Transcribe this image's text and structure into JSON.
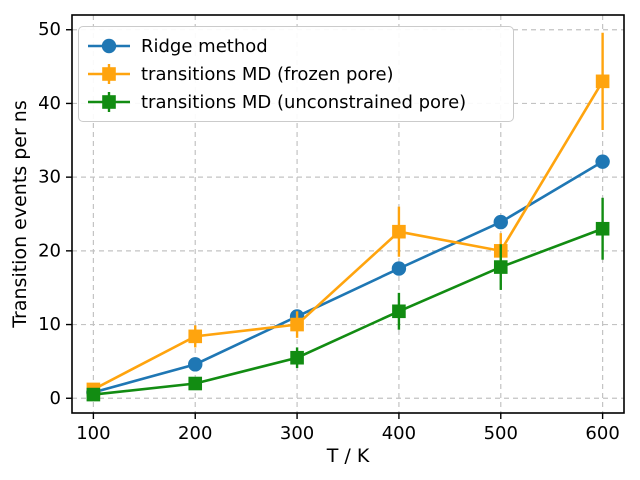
{
  "chart_data": {
    "type": "line",
    "title": "",
    "xlabel": "T / K",
    "ylabel": "Transition events per ns",
    "x": [
      100,
      200,
      300,
      400,
      500,
      600
    ],
    "xticks": [
      100,
      200,
      300,
      400,
      500,
      600
    ],
    "yticks": [
      0,
      10,
      20,
      30,
      40,
      50
    ],
    "xlim": [
      79,
      621
    ],
    "ylim": [
      -2,
      52
    ],
    "grid": true,
    "grid_style": "dashed",
    "legend_position": "upper-left",
    "series": [
      {
        "name": "Ridge method",
        "color": "#1f77b4",
        "marker": "circle",
        "has_error_bars": false,
        "values": [
          0.8,
          4.6,
          11.1,
          17.6,
          23.9,
          32.1
        ]
      },
      {
        "name": "transitions MD (frozen pore)",
        "color": "#ffa40e",
        "marker": "square",
        "has_error_bars": true,
        "values": [
          1.2,
          8.4,
          10.0,
          22.6,
          20.0,
          43.0
        ],
        "errors": [
          0.6,
          1.5,
          1.8,
          3.4,
          2.4,
          6.6
        ]
      },
      {
        "name": "transitions MD (unconstrained pore)",
        "color": "#128c12",
        "marker": "square",
        "has_error_bars": true,
        "values": [
          0.5,
          2.0,
          5.5,
          11.8,
          17.8,
          23.0
        ],
        "errors": [
          0.4,
          0.6,
          1.4,
          2.5,
          3.1,
          4.2
        ]
      }
    ]
  },
  "colors": {
    "background": "#ffffff",
    "grid": "#c3c3c3",
    "axis": "#000000",
    "legend_border": "#cbcbcb"
  }
}
